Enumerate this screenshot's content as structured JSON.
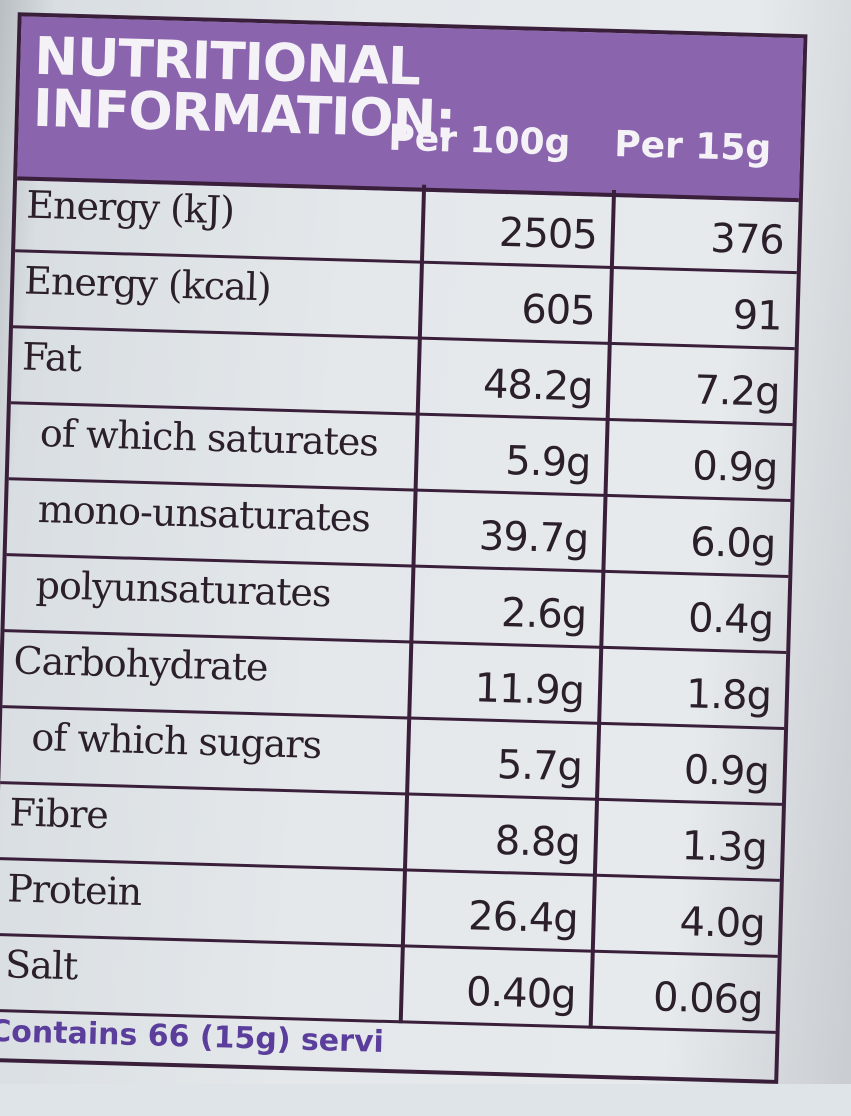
{
  "header": {
    "title": "NUTRITIONAL INFORMATION:",
    "col_per_100g": "Per 100g",
    "col_per_15g": "Per 15g"
  },
  "rows": [
    {
      "name": "Energy (kJ)",
      "per100": "2505",
      "per15": "376"
    },
    {
      "name": "Energy (kcal)",
      "per100": "605",
      "per15": "91"
    },
    {
      "name": "Fat",
      "per100": "48.2g",
      "per15": "7.2g"
    },
    {
      "name": "of which saturates",
      "per100": "5.9g",
      "per15": "0.9g"
    },
    {
      "name": "mono-unsaturates",
      "per100": "39.7g",
      "per15": "6.0g"
    },
    {
      "name": "polyunsaturates",
      "per100": "2.6g",
      "per15": "0.4g"
    },
    {
      "name": "Carbohydrate",
      "per100": "11.9g",
      "per15": "1.8g"
    },
    {
      "name": "of which sugars",
      "per100": "5.7g",
      "per15": "0.9g"
    },
    {
      "name": "Fibre",
      "per100": "8.8g",
      "per15": "1.3g"
    },
    {
      "name": "Protein",
      "per100": "26.4g",
      "per15": "4.0g"
    },
    {
      "name": "Salt",
      "per100": "0.40g",
      "per15": "0.06g"
    }
  ],
  "footer": {
    "text": "Contains 66 (15g) servi"
  },
  "colors": {
    "header_bg": "#8a64ad",
    "border": "#3a1f3a",
    "footer_text": "#5b3e9c"
  }
}
